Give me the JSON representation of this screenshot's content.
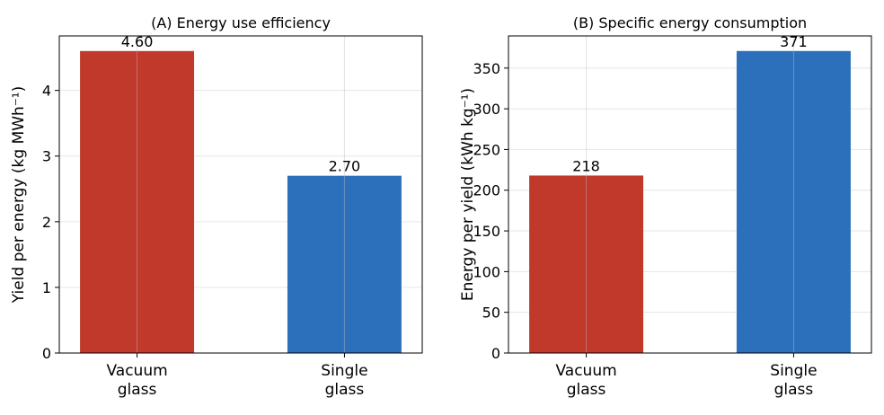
{
  "chart_data": [
    {
      "type": "bar",
      "title": "(A) Energy use efficiency",
      "ylabel": "Yield per energy (kg MWh⁻¹)",
      "xlabel": "",
      "categories": [
        [
          "Vacuum",
          "glass"
        ],
        [
          "Single",
          "glass"
        ]
      ],
      "values": [
        4.6,
        2.7
      ],
      "value_labels": [
        "4.60",
        "2.70"
      ],
      "colors": [
        "#c0392b",
        "#2c6fbb"
      ],
      "ylim": [
        0,
        4.83
      ],
      "yticks": [
        0,
        1,
        2,
        3,
        4
      ],
      "grid": true,
      "legend": "none"
    },
    {
      "type": "bar",
      "title": "(B) Specific energy consumption",
      "ylabel": "Energy per yield (kWh kg⁻¹)",
      "xlabel": "",
      "categories": [
        [
          "Vacuum",
          "glass"
        ],
        [
          "Single",
          "glass"
        ]
      ],
      "values": [
        218,
        371
      ],
      "value_labels": [
        "218",
        "371"
      ],
      "colors": [
        "#c0392b",
        "#2c6fbb"
      ],
      "ylim": [
        0,
        389.5
      ],
      "yticks": [
        0,
        50,
        100,
        150,
        200,
        250,
        300,
        350
      ],
      "grid": true,
      "legend": "none"
    }
  ]
}
